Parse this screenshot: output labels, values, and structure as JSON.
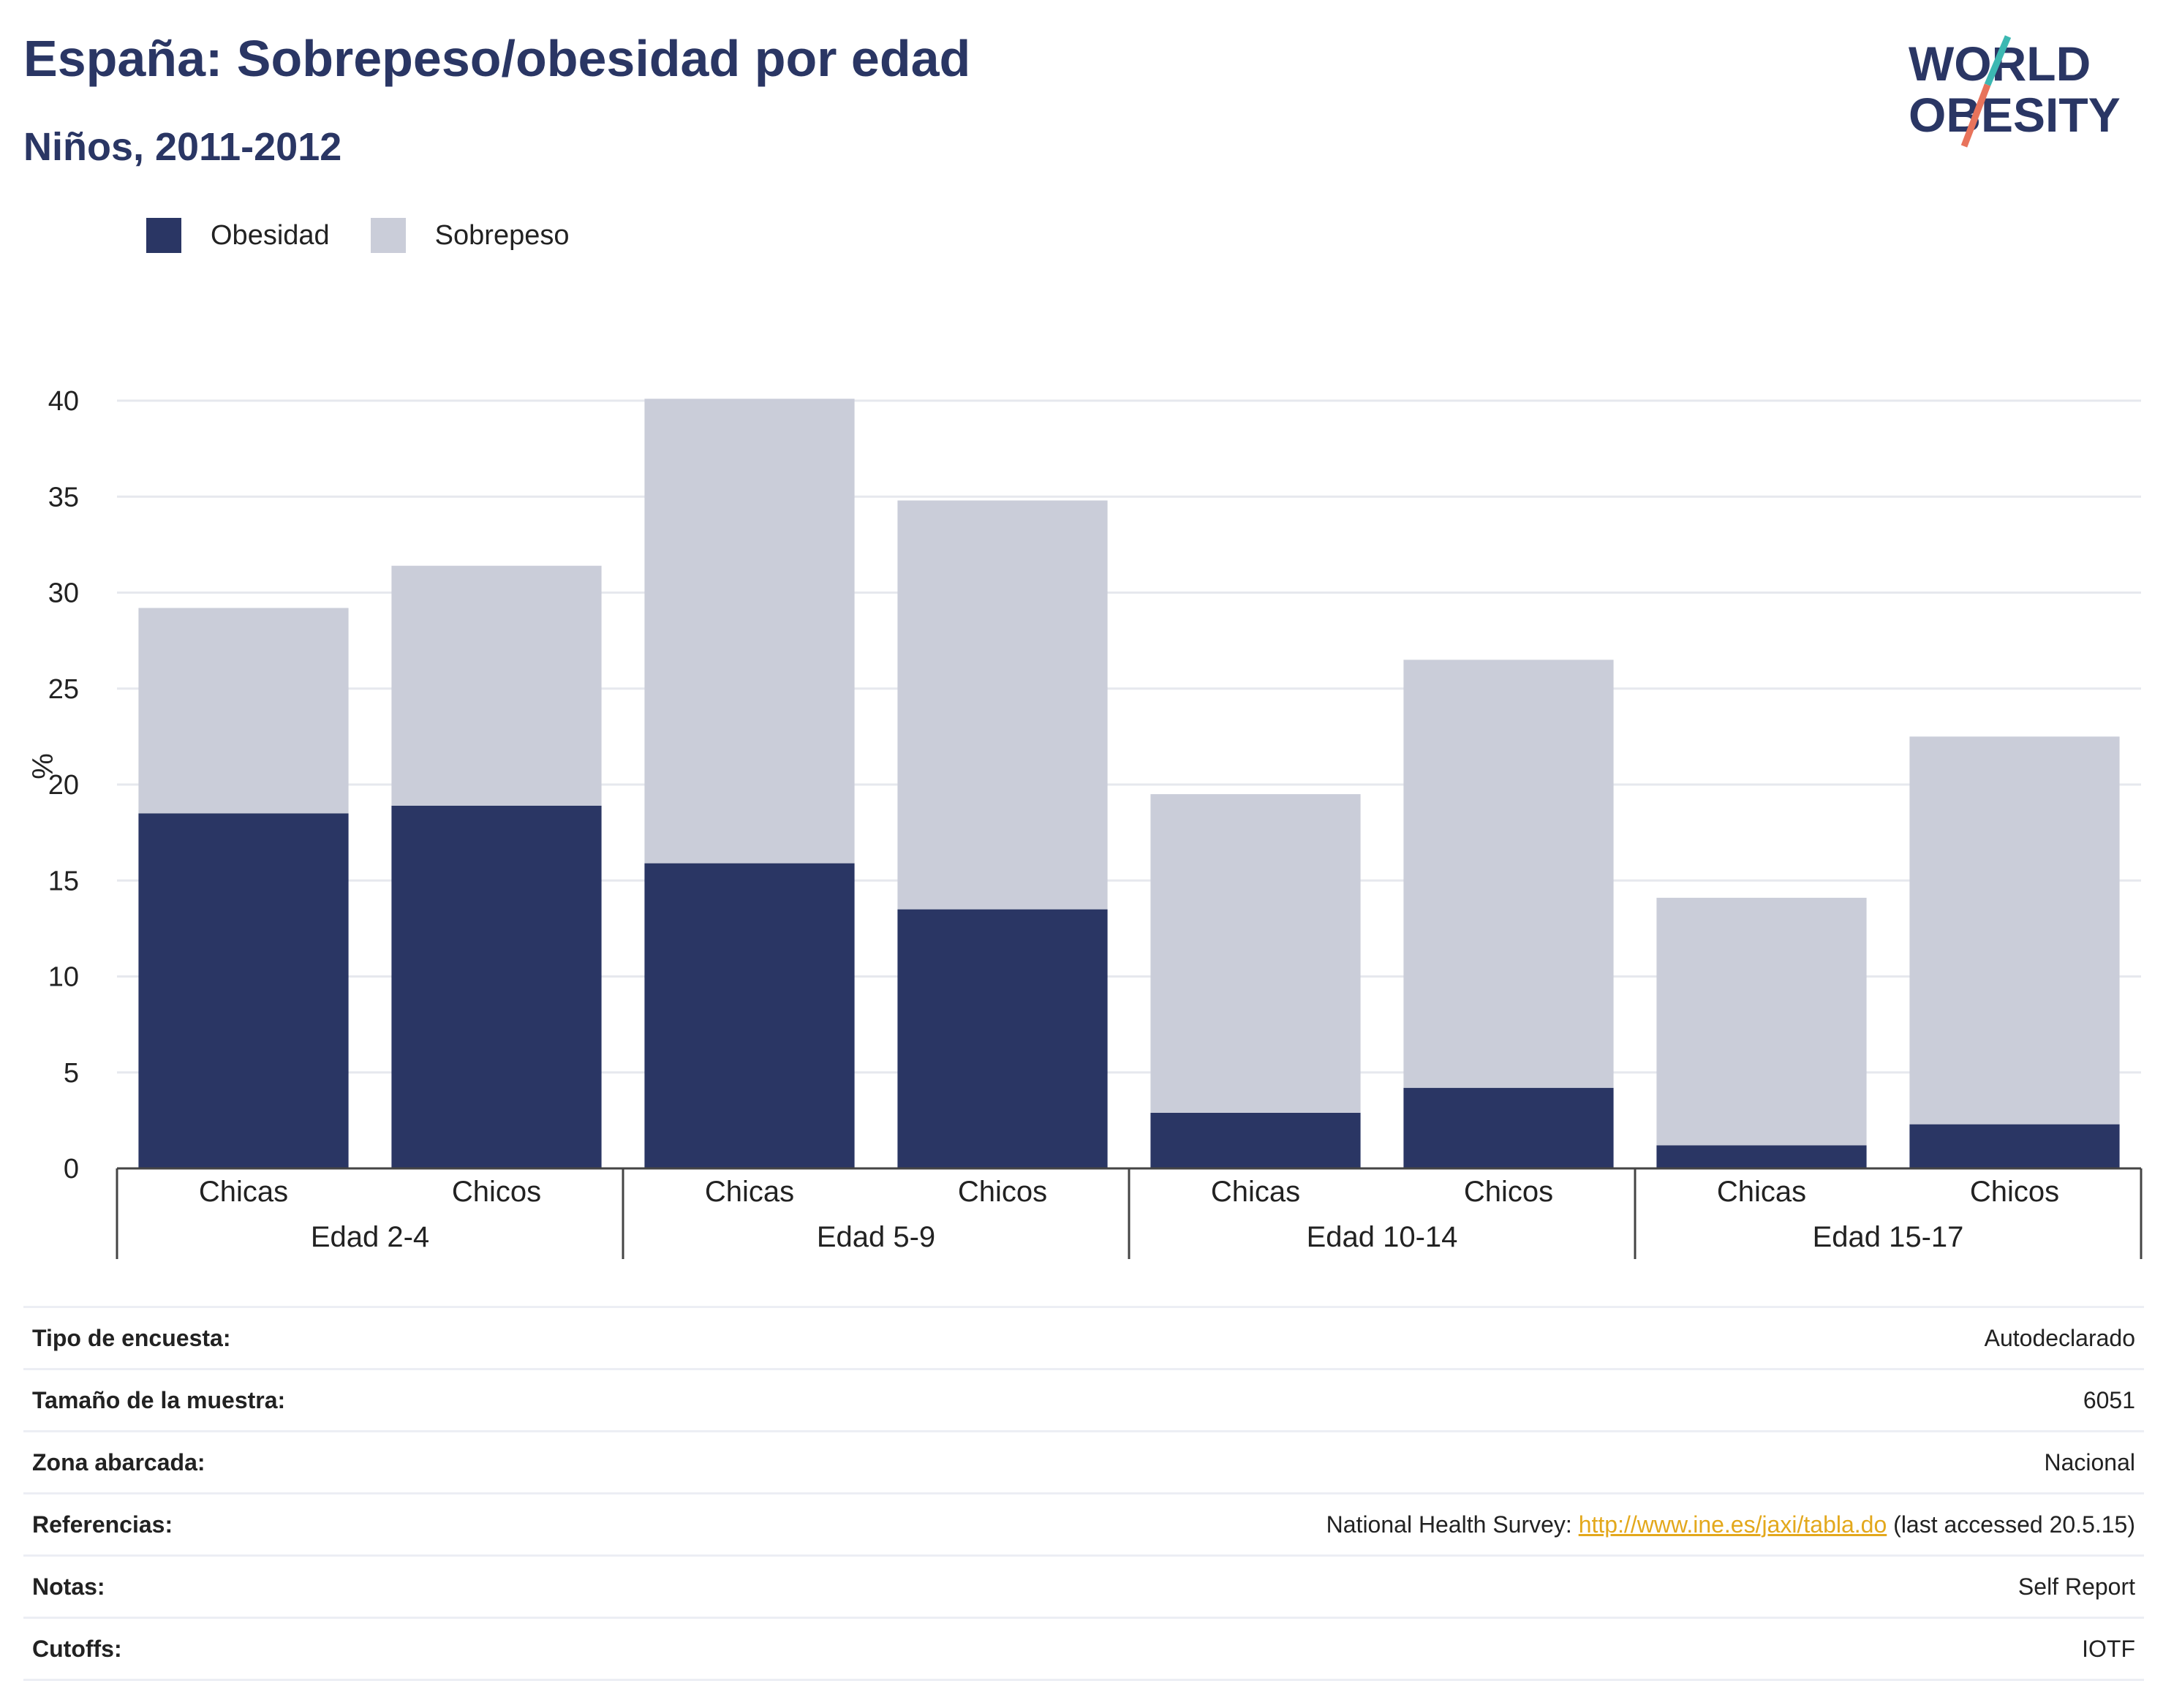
{
  "header": {
    "title": "España: Sobrepeso/obesidad por edad",
    "subtitle": "Niños, 2011-2012"
  },
  "logo": {
    "line1": "WORLD",
    "line2": "OBESITY"
  },
  "colors": {
    "obesidad": "#2a3664",
    "sobrepeso": "#cacdd9",
    "accent_teal": "#3cb8b2",
    "accent_coral": "#e8735b",
    "link": "#e3a81c"
  },
  "chart_data": {
    "type": "bar",
    "stacked": true,
    "ylabel": "%",
    "ylim": [
      0,
      40
    ],
    "yticks": [
      0,
      5,
      10,
      15,
      20,
      25,
      30,
      35,
      40
    ],
    "grid": true,
    "legend_position": "top-left",
    "groups": [
      "Edad 2-4",
      "Edad 5-9",
      "Edad 10-14",
      "Edad 15-17"
    ],
    "categories": [
      "Chicas",
      "Chicos",
      "Chicas",
      "Chicos",
      "Chicas",
      "Chicos",
      "Chicas",
      "Chicos"
    ],
    "series": [
      {
        "name": "Obesidad",
        "values": [
          18.5,
          18.9,
          15.9,
          13.5,
          2.9,
          4.2,
          1.2,
          2.3
        ]
      },
      {
        "name": "Sobrepeso",
        "values": [
          10.7,
          12.5,
          24.2,
          21.3,
          16.6,
          22.3,
          12.9,
          20.2
        ]
      }
    ]
  },
  "info": [
    {
      "label": "Tipo de encuesta:",
      "value": "Autodeclarado"
    },
    {
      "label": "Tamaño de la muestra:",
      "value": "6051"
    },
    {
      "label": "Zona abarcada:",
      "value": "Nacional"
    },
    {
      "label": "Referencias:",
      "value_prefix": "National Health Survey: ",
      "link": "http://www.ine.es/jaxi/tabla.do",
      "value_suffix": " (last accessed 20.5.15)"
    },
    {
      "label": "Notas:",
      "value": "Self Report"
    },
    {
      "label": "Cutoffs:",
      "value": "IOTF"
    }
  ]
}
